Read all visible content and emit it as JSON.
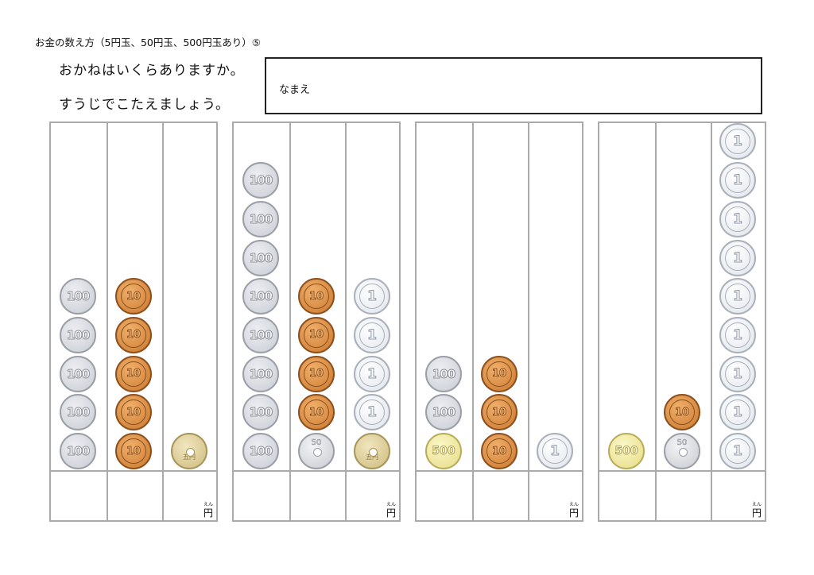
{
  "title": "お金の数え方（5円玉、50円玉、500円玉あり）⑤",
  "instructions": [
    "おかねはいくらありますか。",
    "すうじでこたえましょう。"
  ],
  "name_label": "なまえ",
  "yen_label": "円",
  "yen_ruby": "えん",
  "coin_labels": {
    "c500": "500",
    "c100": "100",
    "c50": "50",
    "c10": "10",
    "c5": "五円",
    "c1": "1"
  },
  "colors": {
    "panel_border": "#aaaaaa",
    "name_box_border": "#222222"
  },
  "panels": [
    {
      "columns": [
        [
          "c100",
          "c100",
          "c100",
          "c100",
          "c100"
        ],
        [
          "c10",
          "c10",
          "c10",
          "c10",
          "c10"
        ],
        [
          "c5"
        ]
      ]
    },
    {
      "columns": [
        [
          "c100",
          "c100",
          "c100",
          "c100",
          "c100",
          "c100",
          "c100",
          "c100"
        ],
        [
          "c50",
          "c10",
          "c10",
          "c10",
          "c10"
        ],
        [
          "c5",
          "c1",
          "c1",
          "c1",
          "c1"
        ]
      ]
    },
    {
      "columns": [
        [
          "c500",
          "c100",
          "c100"
        ],
        [
          "c10",
          "c10",
          "c10"
        ],
        [
          "c1"
        ]
      ]
    },
    {
      "columns": [
        [
          "c500"
        ],
        [
          "c50",
          "c10"
        ],
        [
          "c1",
          "c1",
          "c1",
          "c1",
          "c1",
          "c1",
          "c1",
          "c1",
          "c1"
        ]
      ]
    }
  ]
}
